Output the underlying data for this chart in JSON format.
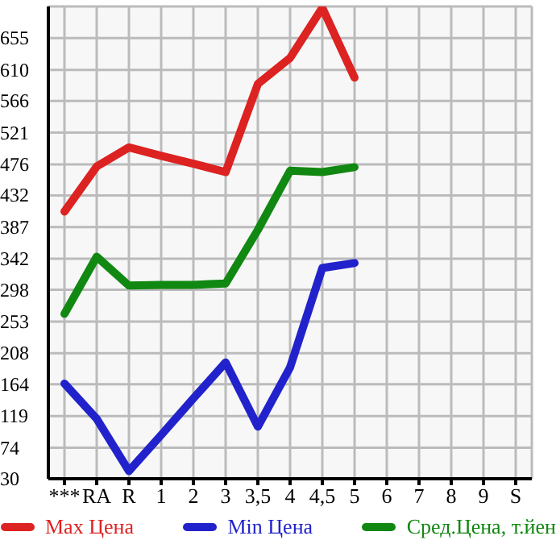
{
  "chart_data": {
    "type": "line",
    "categories": [
      "***",
      "RA",
      "R",
      "1",
      "2",
      "3",
      "3,5",
      "4",
      "4,5",
      "5",
      "6",
      "7",
      "8",
      "9",
      "S"
    ],
    "series": [
      {
        "name": "Max Цена",
        "color": "#dd2222",
        "values": [
          409,
          473,
          500,
          488,
          477,
          465,
          590,
          627,
          698,
          599,
          null,
          null,
          null,
          null,
          null
        ]
      },
      {
        "name": "Min Цена",
        "color": "#2222cc",
        "values": [
          165,
          115,
          41,
          92,
          144,
          195,
          104,
          188,
          329,
          336,
          null,
          null,
          null,
          null,
          null
        ]
      },
      {
        "name": "Сред.Цена, т.йен",
        "color": "#118811",
        "values": [
          264,
          345,
          304,
          305,
          305,
          307,
          383,
          467,
          465,
          472,
          null,
          null,
          null,
          null,
          null
        ]
      }
    ],
    "ylim": [
      30,
      700
    ],
    "yticks": [
      30,
      74,
      119,
      164,
      208,
      253,
      298,
      342,
      387,
      432,
      476,
      521,
      566,
      610,
      655
    ],
    "grid": true,
    "legend": "bottom",
    "marker": "none",
    "line_style": "solid"
  }
}
